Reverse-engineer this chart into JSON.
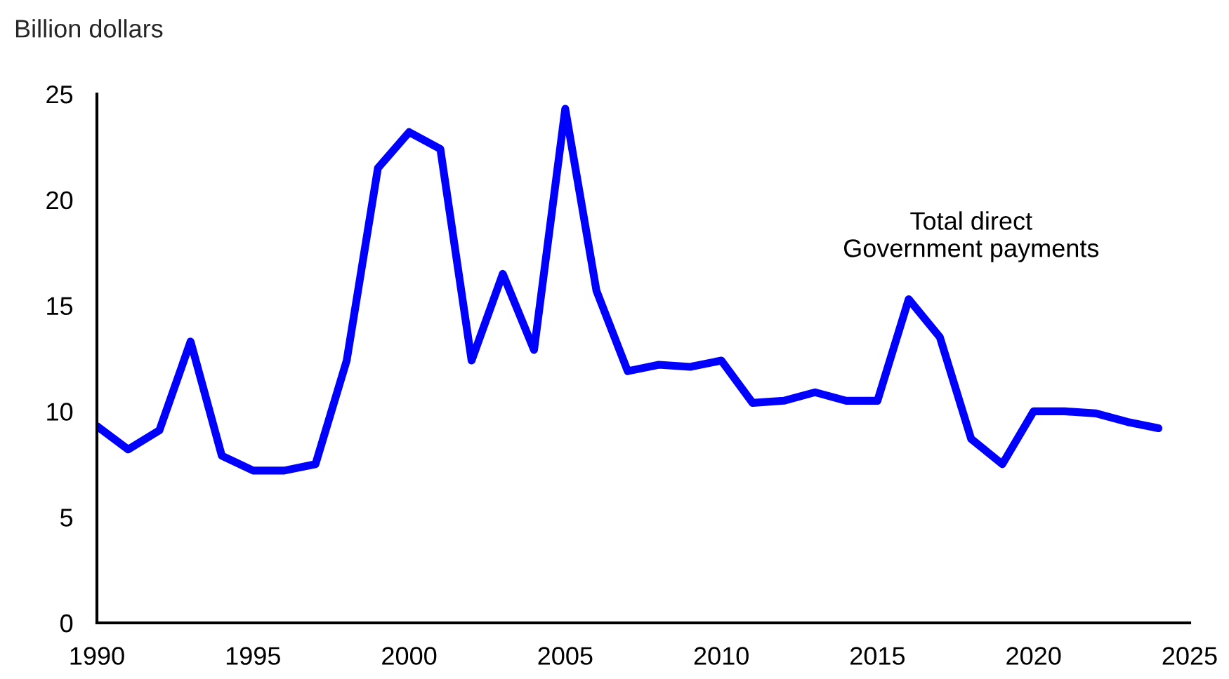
{
  "chart_data": {
    "type": "line",
    "ylabel": "Billion dollars",
    "x": [
      1990,
      1991,
      1992,
      1993,
      1994,
      1995,
      1996,
      1997,
      1998,
      1999,
      2000,
      2001,
      2002,
      2003,
      2004,
      2005,
      2006,
      2007,
      2008,
      2009,
      2010,
      2011,
      2012,
      2013,
      2014,
      2015,
      2016,
      2017,
      2018,
      2019,
      2020,
      2021,
      2022,
      2023,
      2024
    ],
    "series": [
      {
        "name": "Total direct\nGovernment payments",
        "color": "#0000ff",
        "values": [
          9.3,
          8.2,
          9.1,
          13.3,
          7.9,
          7.2,
          7.2,
          7.5,
          12.4,
          21.5,
          23.2,
          22.4,
          12.4,
          16.5,
          12.9,
          24.3,
          15.7,
          11.9,
          12.2,
          12.1,
          12.4,
          10.4,
          10.5,
          10.9,
          10.5,
          10.5,
          15.3,
          13.5,
          8.7,
          7.5,
          10.0,
          10.0,
          9.9,
          9.5,
          9.2
        ]
      }
    ],
    "xlim": [
      1990,
      2025
    ],
    "xticks": [
      1990,
      1995,
      2000,
      2005,
      2010,
      2015,
      2020,
      2025
    ],
    "ylim": [
      0,
      25
    ],
    "yticks": [
      0,
      5,
      10,
      15,
      20,
      25
    ],
    "grid": false,
    "legend": false,
    "marker": "none",
    "line_style": "solid"
  }
}
